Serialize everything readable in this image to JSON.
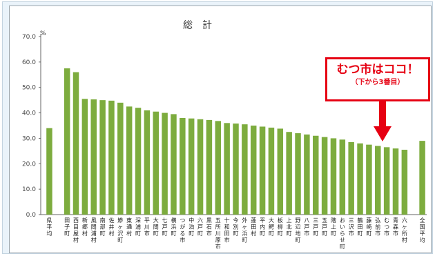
{
  "chart_data": {
    "type": "bar",
    "title": "総　計",
    "ylabel": "",
    "unit": "%",
    "ylim": [
      0,
      70
    ],
    "yticks": [
      "70.0",
      "60.0",
      "50.0",
      "40.0",
      "30.0",
      "20.0",
      "10.0",
      "0.0"
    ],
    "grid": false,
    "categories": [
      "県平均",
      "",
      "田子町",
      "西目屋村",
      "新郷村",
      "風間浦村",
      "南部町",
      "佐井村",
      "鰺ヶ沢町",
      "東通村",
      "深浦町",
      "平川市",
      "大間町",
      "七戸町",
      "横浜町",
      "つがる市",
      "中泊町",
      "六戸町",
      "黒石市",
      "五所川原市",
      "十和田市",
      "今別町",
      "外ヶ浜町",
      "蓬田村",
      "平内町",
      "大鰐町",
      "板柳町",
      "上北町",
      "野辺地町",
      "八戸市",
      "三戸町",
      "五戸町",
      "階上町",
      "おいらせ町",
      "三沢市",
      "鶴田町",
      "藤崎町",
      "弘前市",
      "むつ市",
      "青森市",
      "六ヶ所村",
      "",
      "全国平均"
    ],
    "values": [
      34.0,
      null,
      57.5,
      56.0,
      45.5,
      45.3,
      45.0,
      44.8,
      44.0,
      42.5,
      42.0,
      41.0,
      40.5,
      40.0,
      39.5,
      38.0,
      37.8,
      37.5,
      37.2,
      36.8,
      36.0,
      35.8,
      35.5,
      35.0,
      34.6,
      34.2,
      33.8,
      32.5,
      32.0,
      31.5,
      31.0,
      30.5,
      30.0,
      29.5,
      28.5,
      28.0,
      27.5,
      27.0,
      26.5,
      26.0,
      25.5,
      null,
      29.0
    ],
    "bar_color": "#7dac3e"
  },
  "callout": {
    "title": "むつ市はココ！",
    "subtitle": "（下から3番目）",
    "color": "#e60012"
  }
}
